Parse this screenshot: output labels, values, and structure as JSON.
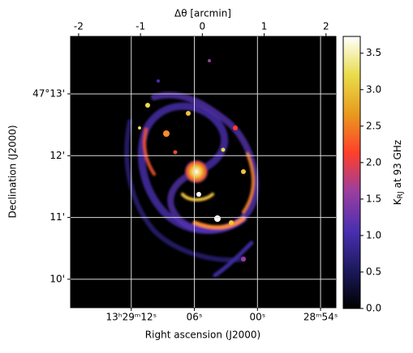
{
  "chart_data": {
    "type": "image",
    "xlabel": "Right ascension (J2000)",
    "xlim": [
      17.77,
      -7.46
    ],
    "xticks": [
      {
        "value": 12,
        "label": "13ʰ29ᵐ12ˢ"
      },
      {
        "value": 6,
        "label": "06ˢ"
      },
      {
        "value": 0,
        "label": "00ˢ"
      },
      {
        "value": -6,
        "label": "28ᵐ54ˢ"
      }
    ],
    "ylabel": "Declination (J2000)",
    "ylim": [
      9.54,
      13.93
    ],
    "yticks": [
      {
        "value": 13,
        "label": "47°13'"
      },
      {
        "value": 12,
        "label": "12'"
      },
      {
        "value": 11,
        "label": "11'"
      },
      {
        "value": 10,
        "label": "10'"
      }
    ],
    "x2label": "Δθ [arcmin]",
    "x2lim": [
      -2.13,
      2.16
    ],
    "x2ticks": [
      -2,
      -1,
      0,
      1,
      2
    ],
    "grid": true,
    "colorbar": {
      "label": [
        "K",
        "RJ",
        "at 93 GHz"
      ],
      "ylim": [
        0,
        3.73
      ],
      "yticks": [
        {
          "value": 0,
          "label": "0.0"
        },
        0.5,
        {
          "value": 1,
          "label": "1.0"
        },
        1.5,
        {
          "value": 2,
          "label": "2.0"
        },
        2.5,
        {
          "value": 3,
          "label": "3.0"
        },
        3.5
      ],
      "colors": [
        "#000000",
        "#1c1a5e",
        "#4a2fb0",
        "#9a3ea0",
        "#ff3f2a",
        "#e89a1e",
        "#e8dc4a",
        "#ffffff"
      ]
    }
  }
}
